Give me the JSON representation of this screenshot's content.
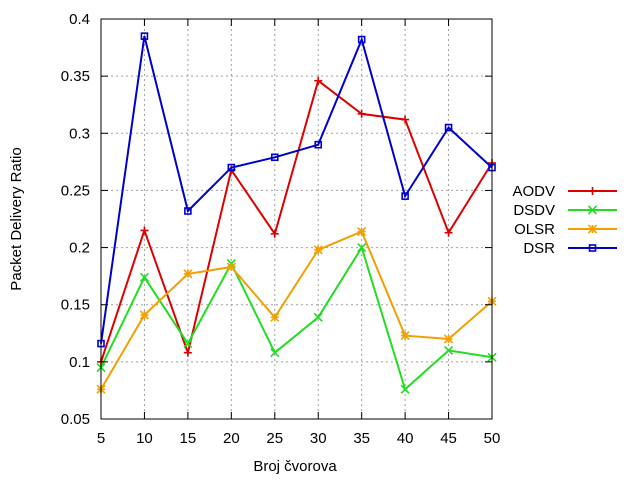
{
  "chart_data": {
    "type": "line",
    "title": "",
    "xlabel": "Broj čvorova",
    "ylabel": "Packet Delivery Ratio",
    "x": [
      5,
      10,
      15,
      20,
      25,
      30,
      35,
      40,
      45,
      50
    ],
    "xlim": [
      5,
      50
    ],
    "ylim": [
      0.05,
      0.4
    ],
    "xticks": [
      "5",
      "10",
      "15",
      "20",
      "25",
      "30",
      "35",
      "40",
      "45",
      "50"
    ],
    "yticks": [
      "0.05",
      "0.1",
      "0.15",
      "0.2",
      "0.25",
      "0.3",
      "0.35",
      "0.4"
    ],
    "grid": true,
    "legend_position": "right",
    "series": [
      {
        "name": "AODV",
        "color": "#dd0000",
        "marker": "plus",
        "values": [
          0.1,
          0.215,
          0.108,
          0.268,
          0.212,
          0.346,
          0.317,
          0.312,
          0.213,
          0.274
        ]
      },
      {
        "name": "DSDV",
        "color": "#22dd22",
        "marker": "cross",
        "values": [
          0.095,
          0.174,
          0.116,
          0.186,
          0.108,
          0.139,
          0.2,
          0.076,
          0.11,
          0.104
        ]
      },
      {
        "name": "OLSR",
        "color": "#f0a000",
        "marker": "star",
        "values": [
          0.076,
          0.141,
          0.177,
          0.183,
          0.139,
          0.198,
          0.214,
          0.123,
          0.12,
          0.153
        ]
      },
      {
        "name": "DSR",
        "color": "#0000cc",
        "marker": "square",
        "values": [
          0.116,
          0.385,
          0.232,
          0.27,
          0.279,
          0.29,
          0.382,
          0.245,
          0.305,
          0.27
        ]
      }
    ]
  }
}
